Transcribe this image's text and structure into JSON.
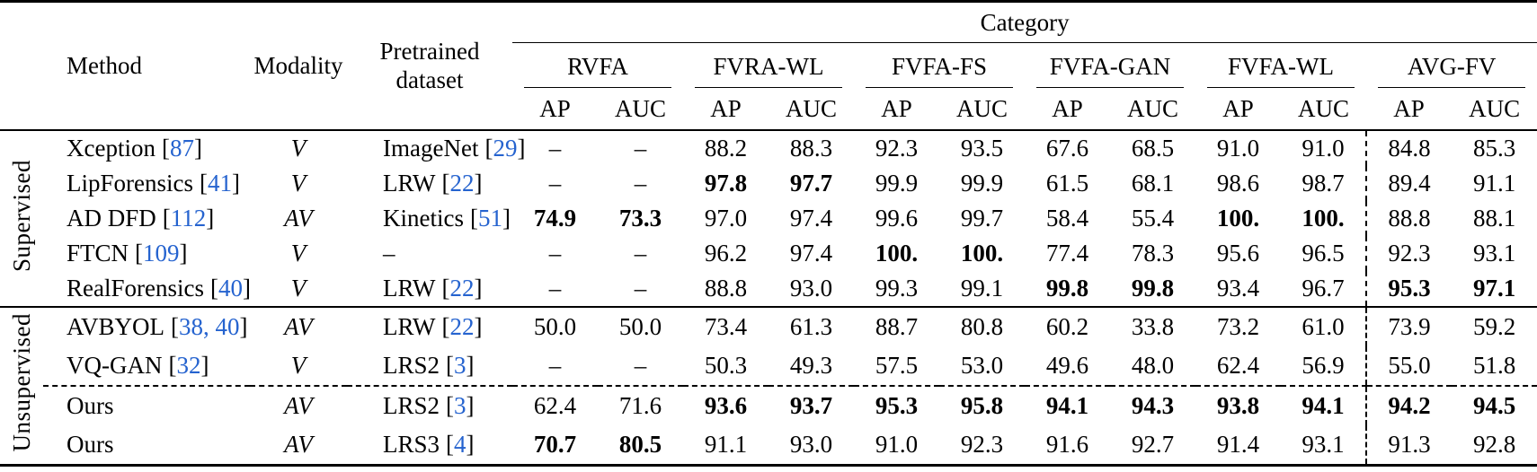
{
  "colors": {
    "citation": "#2563cf",
    "text": "#000000",
    "background": "#ffffff"
  },
  "header": {
    "category": "Category",
    "method": "Method",
    "modality": "Modality",
    "pretrained_line1": "Pretrained",
    "pretrained_line2": "dataset",
    "groups": [
      "RVFA",
      "FVRA-WL",
      "FVFA-FS",
      "FVFA-GAN",
      "FVFA-WL",
      "AVG-FV"
    ],
    "metric_ap": "AP",
    "metric_auc": "AUC"
  },
  "row_groups": [
    {
      "label": "Supervised",
      "rows": [
        {
          "method": {
            "name": "Xception",
            "lb": "[",
            "cite": "87",
            "rb": "]"
          },
          "modality": "V",
          "pretrained": {
            "name": "ImageNet",
            "lb": "[",
            "cite": "29",
            "rb": "]"
          },
          "values": [
            "–",
            "–",
            "88.2",
            "88.3",
            "92.3",
            "93.5",
            "67.6",
            "68.5",
            "91.0",
            "91.0",
            "84.8",
            "85.3"
          ],
          "bold": [
            0,
            0,
            0,
            0,
            0,
            0,
            0,
            0,
            0,
            0,
            0,
            0
          ]
        },
        {
          "method": {
            "name": "LipForensics",
            "lb": "[",
            "cite": "41",
            "rb": "]"
          },
          "modality": "V",
          "pretrained": {
            "name": "LRW",
            "lb": "[",
            "cite": "22",
            "rb": "]"
          },
          "values": [
            "–",
            "–",
            "97.8",
            "97.7",
            "99.9",
            "99.9",
            "61.5",
            "68.1",
            "98.6",
            "98.7",
            "89.4",
            "91.1"
          ],
          "bold": [
            0,
            0,
            1,
            1,
            0,
            0,
            0,
            0,
            0,
            0,
            0,
            0
          ]
        },
        {
          "method": {
            "name": "AD DFD",
            "lb": "[",
            "cite": "112",
            "rb": "]"
          },
          "modality": "AV",
          "pretrained": {
            "name": "Kinetics",
            "lb": "[",
            "cite": "51",
            "rb": "]"
          },
          "values": [
            "74.9",
            "73.3",
            "97.0",
            "97.4",
            "99.6",
            "99.7",
            "58.4",
            "55.4",
            "100.",
            "100.",
            "88.8",
            "88.1"
          ],
          "bold": [
            1,
            1,
            0,
            0,
            0,
            0,
            0,
            0,
            1,
            1,
            0,
            0
          ]
        },
        {
          "method": {
            "name": "FTCN",
            "lb": "[",
            "cite": "109",
            "rb": "]"
          },
          "modality": "V",
          "pretrained": {
            "name": "–"
          },
          "values": [
            "–",
            "–",
            "96.2",
            "97.4",
            "100.",
            "100.",
            "77.4",
            "78.3",
            "95.6",
            "96.5",
            "92.3",
            "93.1"
          ],
          "bold": [
            0,
            0,
            0,
            0,
            1,
            1,
            0,
            0,
            0,
            0,
            0,
            0
          ]
        },
        {
          "method": {
            "name": "RealForensics",
            "lb": "[",
            "cite": "40",
            "rb": "]"
          },
          "modality": "V",
          "pretrained": {
            "name": "LRW",
            "lb": "[",
            "cite": "22",
            "rb": "]"
          },
          "values": [
            "–",
            "–",
            "88.8",
            "93.0",
            "99.3",
            "99.1",
            "99.8",
            "99.8",
            "93.4",
            "96.7",
            "95.3",
            "97.1"
          ],
          "bold": [
            0,
            0,
            0,
            0,
            0,
            0,
            1,
            1,
            0,
            0,
            1,
            1
          ]
        }
      ]
    },
    {
      "label": "Unsupervised",
      "rows": [
        {
          "method": {
            "name": "AVBYOL",
            "lb": "[",
            "cite": "38, 40",
            "rb": "]"
          },
          "modality": "AV",
          "pretrained": {
            "name": "LRW",
            "lb": "[",
            "cite": "22",
            "rb": "]"
          },
          "values": [
            "50.0",
            "50.0",
            "73.4",
            "61.3",
            "88.7",
            "80.8",
            "60.2",
            "33.8",
            "73.2",
            "61.0",
            "73.9",
            "59.2"
          ],
          "bold": [
            0,
            0,
            0,
            0,
            0,
            0,
            0,
            0,
            0,
            0,
            0,
            0
          ]
        },
        {
          "method": {
            "name": "VQ-GAN",
            "lb": "[",
            "cite": "32",
            "rb": "]"
          },
          "modality": "V",
          "pretrained": {
            "name": "LRS2",
            "lb": "[",
            "cite": "3",
            "rb": "]"
          },
          "values": [
            "–",
            "–",
            "50.3",
            "49.3",
            "57.5",
            "53.0",
            "49.6",
            "48.0",
            "62.4",
            "56.9",
            "55.0",
            "51.8"
          ],
          "bold": [
            0,
            0,
            0,
            0,
            0,
            0,
            0,
            0,
            0,
            0,
            0,
            0
          ],
          "dashed_after": true
        },
        {
          "method": {
            "name": "Ours"
          },
          "modality": "AV",
          "pretrained": {
            "name": "LRS2",
            "lb": "[",
            "cite": "3",
            "rb": "]"
          },
          "values": [
            "62.4",
            "71.6",
            "93.6",
            "93.7",
            "95.3",
            "95.8",
            "94.1",
            "94.3",
            "93.8",
            "94.1",
            "94.2",
            "94.5"
          ],
          "bold": [
            0,
            0,
            1,
            1,
            1,
            1,
            1,
            1,
            1,
            1,
            1,
            1
          ]
        },
        {
          "method": {
            "name": "Ours"
          },
          "modality": "AV",
          "pretrained": {
            "name": "LRS3",
            "lb": "[",
            "cite": "4",
            "rb": "]"
          },
          "values": [
            "70.7",
            "80.5",
            "91.1",
            "93.0",
            "91.0",
            "92.3",
            "91.6",
            "92.7",
            "91.4",
            "93.1",
            "91.3",
            "92.8"
          ],
          "bold": [
            1,
            1,
            0,
            0,
            0,
            0,
            0,
            0,
            0,
            0,
            0,
            0
          ]
        }
      ]
    }
  ]
}
